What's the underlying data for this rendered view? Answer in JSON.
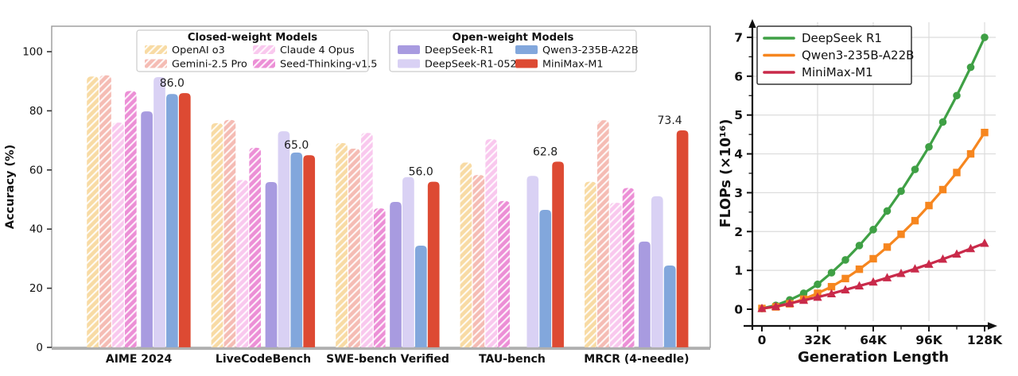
{
  "figure": {
    "background": "#ffffff"
  },
  "chart_data": [
    {
      "type": "bar",
      "title": "",
      "xlabel": "",
      "ylabel": "Accuracy (%)",
      "ylim": [
        0,
        108
      ],
      "yticks": [
        0,
        20,
        40,
        60,
        80,
        100
      ],
      "grid": false,
      "categories": [
        "AIME 2024",
        "LiveCodeBench",
        "SWE-bench Verified",
        "TAU-bench",
        "MRCR (4-needle)"
      ],
      "legend_groups": [
        {
          "title": "Closed-weight Models",
          "entries": [
            "OpenAI o3",
            "Gemini-2.5 Pro",
            "Claude 4 Opus",
            "Seed-Thinking-v1.5"
          ]
        },
        {
          "title": "Open-weight Models",
          "entries": [
            "DeepSeek-R1",
            "DeepSeek-R1-0528",
            "Qwen3-235B-A22B",
            "MiniMax-M1"
          ]
        }
      ],
      "series": [
        {
          "name": "OpenAI o3",
          "color": "#F8DBA4",
          "hatch": true,
          "values": [
            91.6,
            75.8,
            69.1,
            62.5,
            56.0
          ]
        },
        {
          "name": "Gemini-2.5 Pro",
          "color": "#F5BCB4",
          "hatch": true,
          "values": [
            92.0,
            76.9,
            67.2,
            58.3,
            76.8
          ]
        },
        {
          "name": "Claude 4 Opus",
          "color": "#F9C8EE",
          "hatch": true,
          "values": [
            76.0,
            56.6,
            72.5,
            70.4,
            48.9
          ]
        },
        {
          "name": "Seed-Thinking-v1.5",
          "color": "#EC8FD6",
          "hatch": true,
          "values": [
            86.7,
            67.5,
            47.0,
            49.5,
            53.9
          ]
        },
        {
          "name": "DeepSeek-R1",
          "color": "#A89BE0",
          "hatch": false,
          "values": [
            79.8,
            55.9,
            49.2,
            null,
            35.8
          ]
        },
        {
          "name": "DeepSeek-R1-0528",
          "color": "#D9D1F4",
          "hatch": false,
          "values": [
            91.4,
            73.1,
            57.6,
            58.0,
            51.1
          ]
        },
        {
          "name": "Qwen3-235B-A22B",
          "color": "#82A7DC",
          "hatch": false,
          "values": [
            85.7,
            65.9,
            34.4,
            46.5,
            27.7
          ]
        },
        {
          "name": "MiniMax-M1",
          "color": "#DD4A33",
          "hatch": false,
          "values": [
            86.0,
            65.0,
            56.0,
            62.8,
            73.4
          ],
          "annotate": true,
          "annotations": [
            "86.0",
            "65.0",
            "56.0",
            "62.8",
            "73.4"
          ]
        }
      ]
    },
    {
      "type": "line",
      "title": "",
      "xlabel": "Generation Length",
      "ylabel": "FLOPs (×10¹⁶)",
      "xlim": [
        0,
        131
      ],
      "ylim": [
        0,
        7.3
      ],
      "grid": true,
      "legend_position": "upper left",
      "x": [
        0,
        8,
        16,
        24,
        32,
        40,
        48,
        56,
        64,
        72,
        80,
        88,
        96,
        104,
        112,
        120,
        128
      ],
      "xticks": [
        {
          "value": 0,
          "label": "0"
        },
        {
          "value": 32,
          "label": "32K"
        },
        {
          "value": 64,
          "label": "64K"
        },
        {
          "value": 96,
          "label": "96K"
        },
        {
          "value": 128,
          "label": "128K"
        }
      ],
      "minor_xticks": [
        16,
        48,
        80,
        112
      ],
      "yticks": [
        0,
        1,
        2,
        3,
        4,
        5,
        6,
        7
      ],
      "series": [
        {
          "name": "DeepSeek R1",
          "color": "#3FA045",
          "marker": "circle",
          "values": [
            0.02,
            0.1,
            0.24,
            0.41,
            0.64,
            0.94,
            1.27,
            1.64,
            2.05,
            2.53,
            3.04,
            3.6,
            4.18,
            4.82,
            5.5,
            6.23,
            7.0
          ]
        },
        {
          "name": "Qwen3-235B-A22B",
          "color": "#F6861F",
          "marker": "square",
          "values": [
            0.02,
            0.06,
            0.14,
            0.26,
            0.41,
            0.58,
            0.79,
            1.03,
            1.3,
            1.6,
            1.93,
            2.28,
            2.67,
            3.08,
            3.52,
            4.0,
            4.55
          ]
        },
        {
          "name": "MiniMax-M1",
          "color": "#C92A4A",
          "marker": "triangle",
          "values": [
            0.02,
            0.07,
            0.15,
            0.23,
            0.31,
            0.4,
            0.5,
            0.6,
            0.7,
            0.81,
            0.92,
            1.04,
            1.16,
            1.29,
            1.42,
            1.56,
            1.7
          ]
        }
      ]
    }
  ]
}
